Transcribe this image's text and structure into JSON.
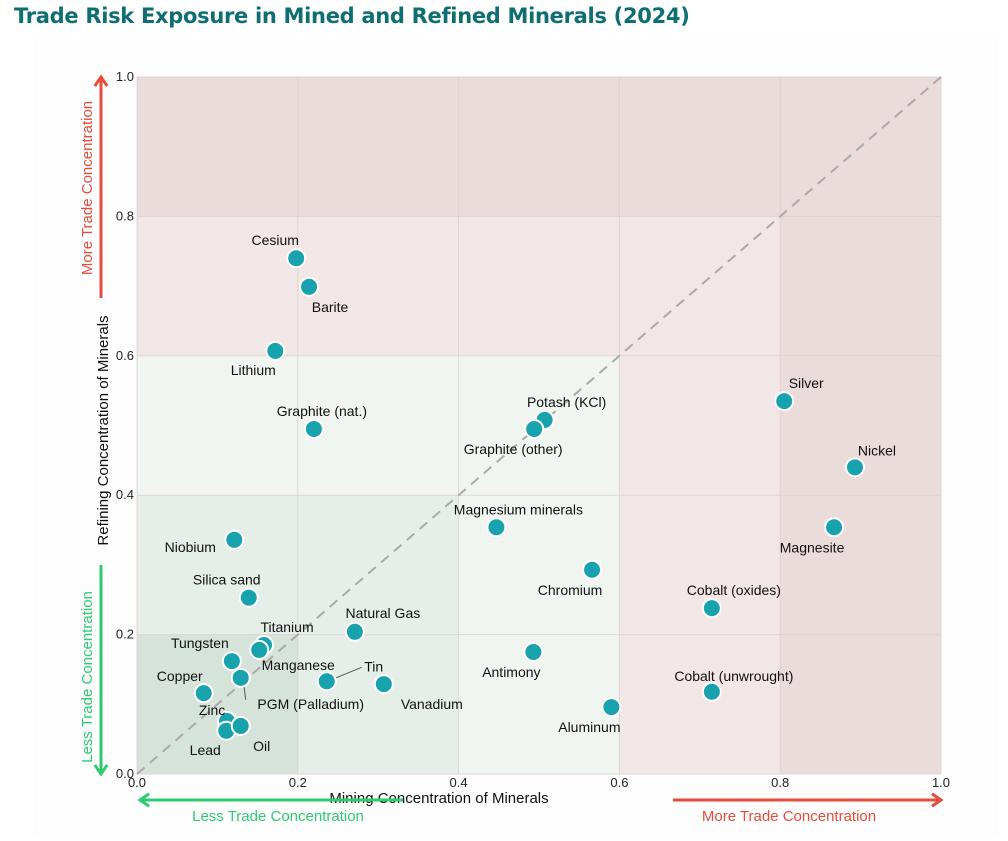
{
  "title": "Trade Risk Exposure in Mined and Refined Minerals (2024)",
  "chart_data": {
    "type": "scatter",
    "title": "Trade Risk Exposure in Mined and Refined Minerals (2024)",
    "xlabel": "Mining Concentration of Minerals",
    "ylabel": "Refining Concentration of Minerals",
    "xlim": [
      0,
      1
    ],
    "ylim": [
      0,
      1
    ],
    "xticks": [
      "0.0",
      "0.2",
      "0.4",
      "0.6",
      "0.8",
      "1.0"
    ],
    "yticks": [
      "0.0",
      "0.2",
      "0.4",
      "0.6",
      "0.8",
      "1.0"
    ],
    "grid": true,
    "diagonal_reference_line": true,
    "annotations": {
      "x_low": "Less Trade Concentration",
      "x_high": "More Trade Concentration",
      "y_low": "Less Trade Concentration",
      "y_high": "More Trade Concentration"
    },
    "colors": {
      "point": "#17a2ad",
      "low_arrow": "#2ecc71",
      "high_arrow": "#e74c3c",
      "zone_green": "#dfe9e3",
      "zone_red": "#ecdedd"
    },
    "points": [
      {
        "label": "Cesium",
        "x": 0.198,
        "y": 0.74
      },
      {
        "label": "Barite",
        "x": 0.214,
        "y": 0.699
      },
      {
        "label": "Lithium",
        "x": 0.172,
        "y": 0.607
      },
      {
        "label": "Graphite (nat.)",
        "x": 0.22,
        "y": 0.495
      },
      {
        "label": "Potash (KCl)",
        "x": 0.507,
        "y": 0.508
      },
      {
        "label": "Graphite (other)",
        "x": 0.494,
        "y": 0.495
      },
      {
        "label": "Silver",
        "x": 0.805,
        "y": 0.535
      },
      {
        "label": "Nickel",
        "x": 0.893,
        "y": 0.44
      },
      {
        "label": "Magnesite",
        "x": 0.867,
        "y": 0.354
      },
      {
        "label": "Magnesium minerals",
        "x": 0.447,
        "y": 0.354
      },
      {
        "label": "Chromium",
        "x": 0.566,
        "y": 0.293
      },
      {
        "label": "Cobalt (oxides)",
        "x": 0.715,
        "y": 0.238
      },
      {
        "label": "Cobalt (unwrought)",
        "x": 0.715,
        "y": 0.118
      },
      {
        "label": "Aluminum",
        "x": 0.59,
        "y": 0.096
      },
      {
        "label": "Antimony",
        "x": 0.493,
        "y": 0.175
      },
      {
        "label": "Vanadium",
        "x": 0.307,
        "y": 0.129
      },
      {
        "label": "Tin",
        "x": 0.236,
        "y": 0.133
      },
      {
        "label": "Natural Gas",
        "x": 0.271,
        "y": 0.204
      },
      {
        "label": "Niobium",
        "x": 0.121,
        "y": 0.336
      },
      {
        "label": "Silica sand",
        "x": 0.139,
        "y": 0.253
      },
      {
        "label": "Titanium",
        "x": 0.158,
        "y": 0.185
      },
      {
        "label": "Manganese",
        "x": 0.152,
        "y": 0.178
      },
      {
        "label": "Tungsten",
        "x": 0.118,
        "y": 0.162
      },
      {
        "label": "PGM (Palladium)",
        "x": 0.129,
        "y": 0.138
      },
      {
        "label": "Copper",
        "x": 0.083,
        "y": 0.116
      },
      {
        "label": "Zinc",
        "x": 0.112,
        "y": 0.076
      },
      {
        "label": "Lead",
        "x": 0.111,
        "y": 0.062
      },
      {
        "label": "Oil",
        "x": 0.129,
        "y": 0.069
      }
    ]
  }
}
